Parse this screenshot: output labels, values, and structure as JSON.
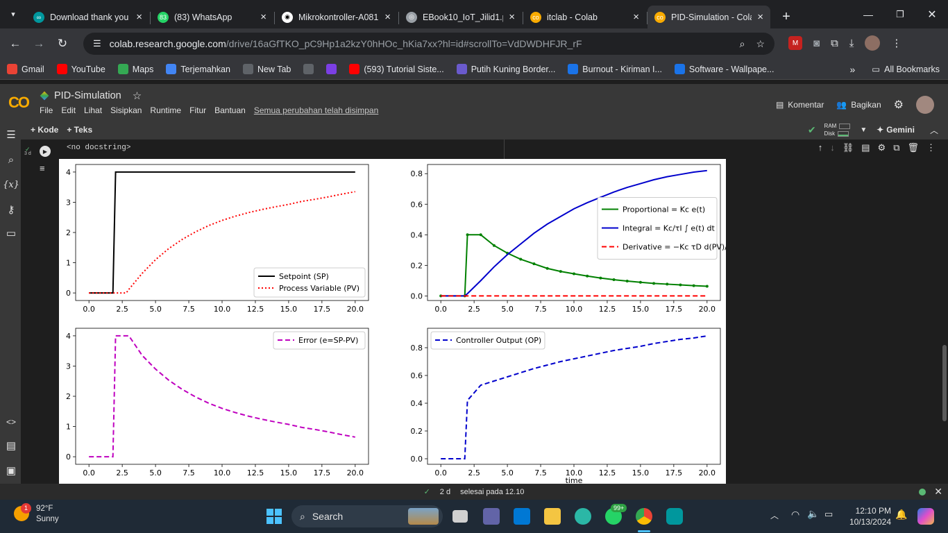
{
  "browser": {
    "tabs": [
      {
        "title": "Download thank you",
        "color": "#00979d",
        "glyph": "∞"
      },
      {
        "title": "(83) WhatsApp",
        "color": "#25d366",
        "glyph": "83"
      },
      {
        "title": "Mikrokontroller-A081",
        "color": "#ffffff",
        "glyph": "◉"
      },
      {
        "title": "EBook10_IoT_Jilid1.pdf",
        "color": "#9aa0a6",
        "glyph": "◎"
      },
      {
        "title": "itclab - Colab",
        "color": "#f9ab00",
        "glyph": "co"
      },
      {
        "title": "PID-Simulation - Colab",
        "color": "#f9ab00",
        "glyph": "co",
        "active": true
      }
    ],
    "url_host": "colab.research.google.com",
    "url_path": "/drive/16aGfTKO_pC9Hp1a2kzY0hHOc_hKia7xx?hl=id#scrollTo=VdDWDHFJR_rF",
    "bookmarks": [
      {
        "label": "Gmail",
        "color": "#ea4335"
      },
      {
        "label": "YouTube",
        "color": "#ff0000"
      },
      {
        "label": "Maps",
        "color": "#34a853"
      },
      {
        "label": "Terjemahkan",
        "color": "#4285f4"
      },
      {
        "label": "New Tab",
        "color": "#5f6368"
      },
      {
        "label": "",
        "color": "#5f6368"
      },
      {
        "label": "",
        "color": "#7b3fe4"
      },
      {
        "label": "(593) Tutorial Siste...",
        "color": "#ff0000"
      },
      {
        "label": "Putih Kuning Border...",
        "color": "#6a5acd"
      },
      {
        "label": "Burnout - Kiriman I...",
        "color": "#1a73e8"
      },
      {
        "label": "Software - Wallpape...",
        "color": "#1a73e8"
      }
    ],
    "all_bookmarks": "All Bookmarks"
  },
  "colab": {
    "title": "PID-Simulation",
    "menus": [
      "File",
      "Edit",
      "Lihat",
      "Sisipkan",
      "Runtime",
      "Fitur",
      "Bantuan"
    ],
    "saved_text": "Semua perubahan telah disimpan",
    "comment": "Komentar",
    "share": "Bagikan",
    "add_code": "+ Kode",
    "add_text": "+ Teks",
    "ram": "RAM",
    "disk": "Disk",
    "gemini": "Gemini",
    "cell_exec": "3 d",
    "docstring": "<no docstring>"
  },
  "status": {
    "duration": "2 d",
    "finished": "selesai pada 12.10"
  },
  "taskbar": {
    "badge": "1",
    "temp": "92°F",
    "weather": "Sunny",
    "search": "Search",
    "wa_badge": "99+",
    "time": "12:10 PM",
    "date": "10/13/2024"
  },
  "chart_data": [
    {
      "type": "line",
      "xlim": [
        -1,
        21
      ],
      "ylim": [
        -0.25,
        4.25
      ],
      "xticks": [
        "0.0",
        "2.5",
        "5.0",
        "7.5",
        "10.0",
        "12.5",
        "15.0",
        "17.5",
        "20.0"
      ],
      "yticks": [
        "0",
        "1",
        "2",
        "3",
        "4"
      ],
      "legend": "bottom-right",
      "series": [
        {
          "name": "Setpoint (SP)",
          "color": "#000000",
          "style": "solid",
          "x": [
            0,
            1.8,
            2,
            20
          ],
          "y": [
            0,
            0,
            4,
            4
          ]
        },
        {
          "name": "Process Variable (PV)",
          "color": "#ff0000",
          "style": "dotted",
          "x": [
            0,
            2,
            2.8,
            3,
            4,
            5,
            6,
            7,
            8,
            9,
            10,
            11,
            12,
            13,
            14,
            15,
            16,
            17,
            18,
            19,
            20
          ],
          "y": [
            0,
            0,
            0,
            0.12,
            0.65,
            1.1,
            1.47,
            1.77,
            2.02,
            2.23,
            2.4,
            2.54,
            2.66,
            2.76,
            2.85,
            2.93,
            3.03,
            3.1,
            3.18,
            3.27,
            3.35
          ]
        }
      ]
    },
    {
      "type": "line",
      "xlim": [
        -1,
        21
      ],
      "ylim": [
        -0.03,
        0.86
      ],
      "xticks": [
        "0.0",
        "2.5",
        "5.0",
        "7.5",
        "10.0",
        "12.5",
        "15.0",
        "17.5",
        "20.0"
      ],
      "yticks": [
        "0.0",
        "0.2",
        "0.4",
        "0.6",
        "0.8"
      ],
      "legend": "center-right",
      "series": [
        {
          "name": "Proportional = Kc e(t)",
          "color": "#008000",
          "style": "solid-dot",
          "x": [
            0,
            1.8,
            2,
            3,
            4,
            5,
            6,
            7,
            8,
            9,
            10,
            11,
            12,
            13,
            14,
            15,
            16,
            17,
            18,
            19,
            20
          ],
          "y": [
            0,
            0,
            0.4,
            0.4,
            0.33,
            0.28,
            0.24,
            0.21,
            0.18,
            0.16,
            0.145,
            0.13,
            0.117,
            0.106,
            0.097,
            0.089,
            0.082,
            0.077,
            0.072,
            0.067,
            0.063
          ]
        },
        {
          "name": "Integral = Kc/τI ∫ e(t) dt",
          "color": "#0000cc",
          "style": "solid",
          "x": [
            0,
            1.8,
            2,
            3,
            4,
            5,
            6,
            7,
            8,
            9,
            10,
            11,
            12,
            13,
            14,
            15,
            16,
            17,
            18,
            19,
            20
          ],
          "y": [
            0,
            0,
            0.015,
            0.1,
            0.19,
            0.27,
            0.34,
            0.41,
            0.47,
            0.52,
            0.57,
            0.61,
            0.645,
            0.68,
            0.71,
            0.735,
            0.76,
            0.78,
            0.795,
            0.81,
            0.82
          ]
        },
        {
          "name": "Derivative = −Kc τD d(PV)/dt",
          "color": "#ff0000",
          "style": "dashed",
          "x": [
            0,
            20
          ],
          "y": [
            0,
            0
          ]
        }
      ]
    },
    {
      "type": "line",
      "xlim": [
        -1,
        21
      ],
      "ylim": [
        -0.25,
        4.25
      ],
      "xticks": [
        "0.0",
        "2.5",
        "5.0",
        "7.5",
        "10.0",
        "12.5",
        "15.0",
        "17.5",
        "20.0"
      ],
      "yticks": [
        "0",
        "1",
        "2",
        "3",
        "4"
      ],
      "legend": "top-right",
      "series": [
        {
          "name": "Error (e=SP-PV)",
          "color": "#bf00bf",
          "style": "dashed",
          "x": [
            0,
            1.8,
            2,
            3,
            4,
            5,
            6,
            7,
            8,
            9,
            10,
            11,
            12,
            13,
            14,
            15,
            16,
            17,
            18,
            19,
            20
          ],
          "y": [
            0,
            0,
            4,
            4,
            3.35,
            2.9,
            2.53,
            2.23,
            1.98,
            1.77,
            1.6,
            1.46,
            1.34,
            1.24,
            1.15,
            1.07,
            0.97,
            0.9,
            0.82,
            0.73,
            0.65
          ]
        }
      ]
    },
    {
      "type": "line",
      "xlim": [
        -1,
        21
      ],
      "ylim": [
        -0.04,
        0.94
      ],
      "xticks": [
        "0.0",
        "2.5",
        "5.0",
        "7.5",
        "10.0",
        "12.5",
        "15.0",
        "17.5",
        "20.0"
      ],
      "yticks": [
        "0.0",
        "0.2",
        "0.4",
        "0.6",
        "0.8"
      ],
      "xlabel": "time",
      "legend": "top-left",
      "series": [
        {
          "name": "Controller Output (OP)",
          "color": "#0000cc",
          "style": "dashed",
          "x": [
            0,
            1.8,
            2,
            3,
            4,
            5,
            6,
            7,
            8,
            9,
            10,
            11,
            12,
            13,
            14,
            15,
            16,
            17,
            18,
            19,
            20
          ],
          "y": [
            0,
            0,
            0.42,
            0.53,
            0.56,
            0.59,
            0.62,
            0.65,
            0.675,
            0.7,
            0.72,
            0.74,
            0.76,
            0.78,
            0.795,
            0.81,
            0.83,
            0.845,
            0.86,
            0.87,
            0.885
          ]
        }
      ]
    }
  ]
}
